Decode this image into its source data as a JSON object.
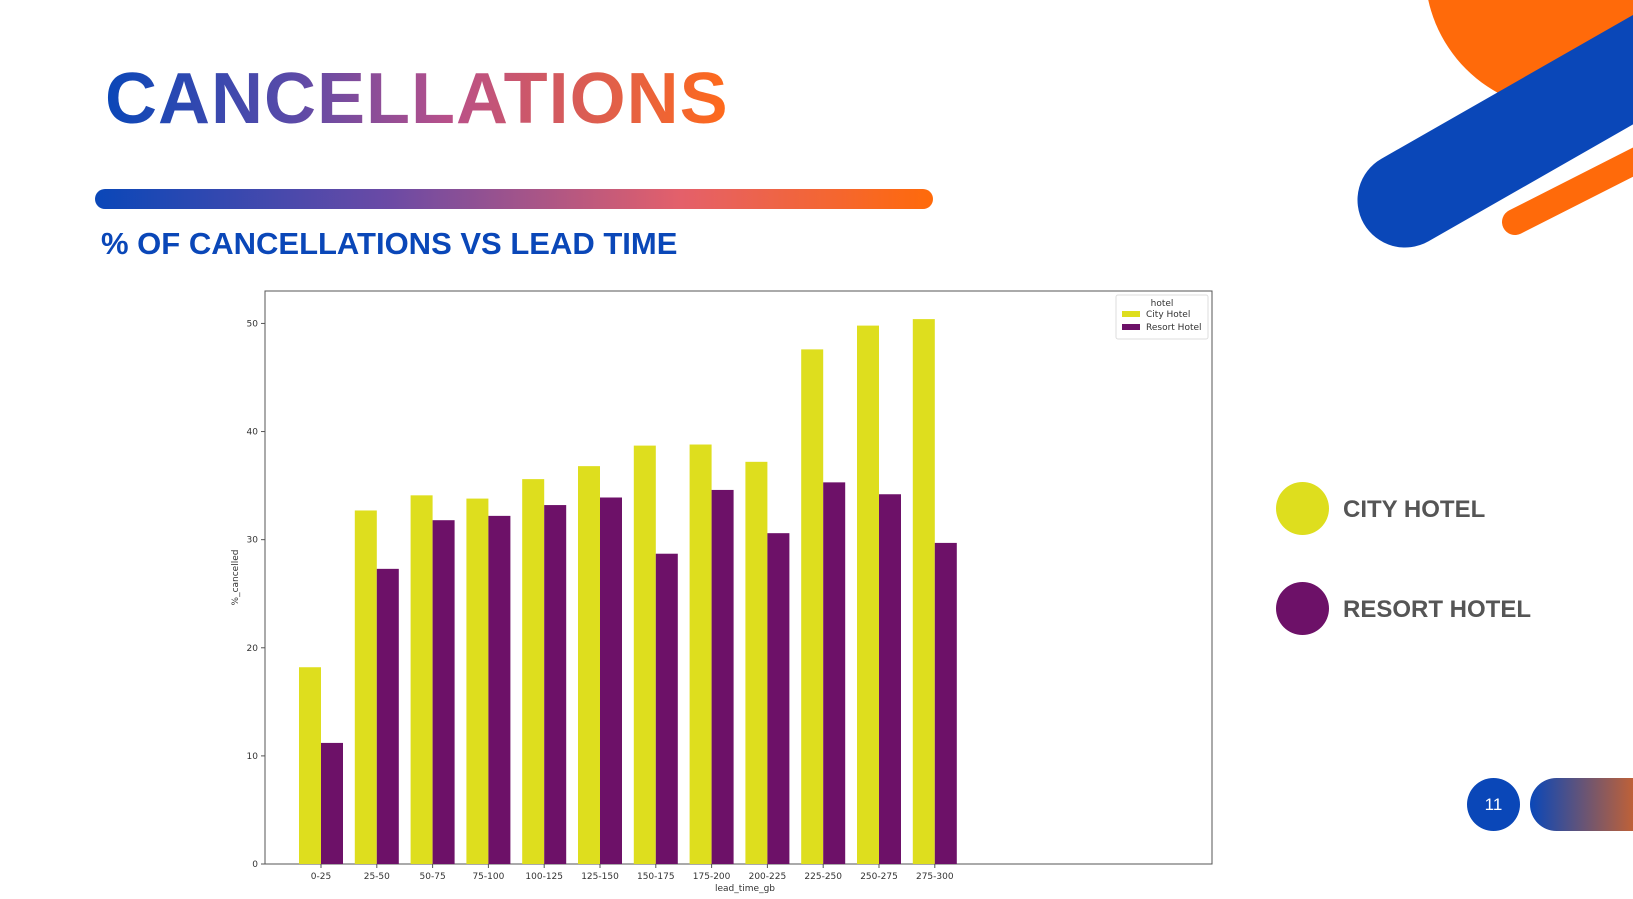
{
  "title": "CANCELLATIONS",
  "subtitle": "% OF CANCELLATIONS VS LEAD TIME",
  "side_legend": [
    {
      "label": "CITY HOTEL",
      "color": "#dede1e"
    },
    {
      "label": "RESORT HOTEL",
      "color": "#6d1168"
    }
  ],
  "page_number": "11",
  "chart_data": {
    "type": "bar",
    "xlabel": "lead_time_gb",
    "ylabel": "%_cancelled",
    "ylim": [
      0,
      53
    ],
    "yticks": [
      0,
      10,
      20,
      30,
      40,
      50
    ],
    "grid": false,
    "legend_title": "hotel",
    "legend_position": "top-right",
    "categories": [
      "0-25",
      "25-50",
      "50-75",
      "75-100",
      "100-125",
      "125-150",
      "150-175",
      "175-200",
      "200-225",
      "225-250",
      "250-275",
      "275-300"
    ],
    "series": [
      {
        "name": "City Hotel",
        "color": "#dede1e",
        "values": [
          18.2,
          32.7,
          34.1,
          33.8,
          35.6,
          36.8,
          38.7,
          38.8,
          37.2,
          47.6,
          49.8,
          50.4
        ]
      },
      {
        "name": "Resort Hotel",
        "color": "#6d1168",
        "values": [
          11.2,
          27.3,
          31.8,
          32.2,
          33.2,
          33.9,
          28.7,
          34.6,
          30.6,
          35.3,
          34.2,
          29.7
        ]
      }
    ]
  }
}
